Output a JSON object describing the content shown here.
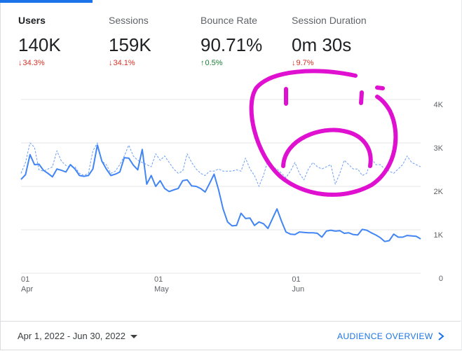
{
  "metrics": [
    {
      "label": "Users",
      "value": "140K",
      "change": "34.3%",
      "direction": "down",
      "active": true
    },
    {
      "label": "Sessions",
      "value": "159K",
      "change": "34.1%",
      "direction": "down",
      "active": false
    },
    {
      "label": "Bounce Rate",
      "value": "90.71%",
      "change": "0.5%",
      "direction": "up",
      "active": false
    },
    {
      "label": "Session Duration",
      "value": "0m 30s",
      "change": "9.7%",
      "direction": "down",
      "active": false
    }
  ],
  "footer": {
    "date_range": "Apr 1, 2022 - Jun 30, 2022",
    "link_label": "AUDIENCE OVERVIEW",
    "chevron_icon": "chevron-right-icon",
    "caret_icon": "caret-down-icon"
  },
  "annotation": {
    "name": "sad-face-drawing",
    "color": "#e010d0"
  },
  "chart_data": {
    "type": "line",
    "x_start": "2022-04-01",
    "x_end": "2022-06-30",
    "x_ticks": [
      {
        "date": "2022-04-01",
        "day": "01",
        "month": "Apr"
      },
      {
        "date": "2022-05-01",
        "day": "01",
        "month": "May"
      },
      {
        "date": "2022-06-01",
        "day": "01",
        "month": "Jun"
      }
    ],
    "y_ticks": [
      {
        "value": 0,
        "label": "0"
      },
      {
        "value": 1000,
        "label": "1K"
      },
      {
        "value": 2000,
        "label": "2K"
      },
      {
        "value": 3000,
        "label": "3K"
      },
      {
        "value": 4000,
        "label": "4K"
      }
    ],
    "ylim": [
      0,
      4000
    ],
    "grid": true,
    "colors": {
      "current": "#4285f4",
      "previous": "#6b9df7",
      "grid": "#e6e6e6"
    },
    "series": [
      {
        "style": "solid",
        "values": [
          2160,
          2270,
          2730,
          2500,
          2510,
          2370,
          2300,
          2220,
          2400,
          2370,
          2330,
          2500,
          2400,
          2250,
          2230,
          2250,
          2400,
          2950,
          2580,
          2400,
          2250,
          2280,
          2330,
          2660,
          2650,
          2490,
          2380,
          2850,
          2050,
          2250,
          2000,
          2130,
          1950,
          1880,
          1920,
          1950,
          2130,
          2150,
          2010,
          2000,
          1950,
          1870,
          2070,
          2280,
          1920,
          1480,
          1180,
          1090,
          1100,
          1380,
          1260,
          1270,
          1100,
          1180,
          1140,
          1030,
          1260,
          1480,
          1200,
          950,
          900,
          890,
          950,
          940,
          930,
          930,
          920,
          830,
          970,
          990,
          970,
          980,
          920,
          930,
          890,
          880,
          1010,
          990,
          930,
          880,
          820,
          730,
          750,
          900,
          830,
          830,
          870,
          860,
          850,
          790
        ]
      },
      {
        "style": "dashed",
        "values": [
          2300,
          2550,
          3000,
          2900,
          2380,
          2350,
          2400,
          2450,
          2820,
          2580,
          2480,
          2450,
          2450,
          2300,
          2250,
          2300,
          2820,
          3000,
          2580,
          2500,
          2300,
          2350,
          2500,
          2700,
          2950,
          2700,
          2600,
          2550,
          2500,
          2450,
          2750,
          2600,
          2700,
          2550,
          2400,
          2300,
          2350,
          2750,
          2550,
          2400,
          2300,
          2250,
          2350,
          2350,
          2400,
          2350,
          2350,
          2350,
          2380,
          2350,
          2650,
          2400,
          2250,
          2000,
          2250,
          2600,
          2450,
          2400,
          2300,
          2200,
          2350,
          2550,
          2300,
          2150,
          2400,
          2550,
          2450,
          2400,
          2450,
          2500,
          2050,
          2300,
          2600,
          2500,
          2400,
          2400,
          2250,
          2300,
          2650,
          2500,
          2500,
          2400,
          2350,
          2300,
          2400,
          2500,
          2700,
          2550,
          2500,
          2450
        ]
      }
    ]
  }
}
